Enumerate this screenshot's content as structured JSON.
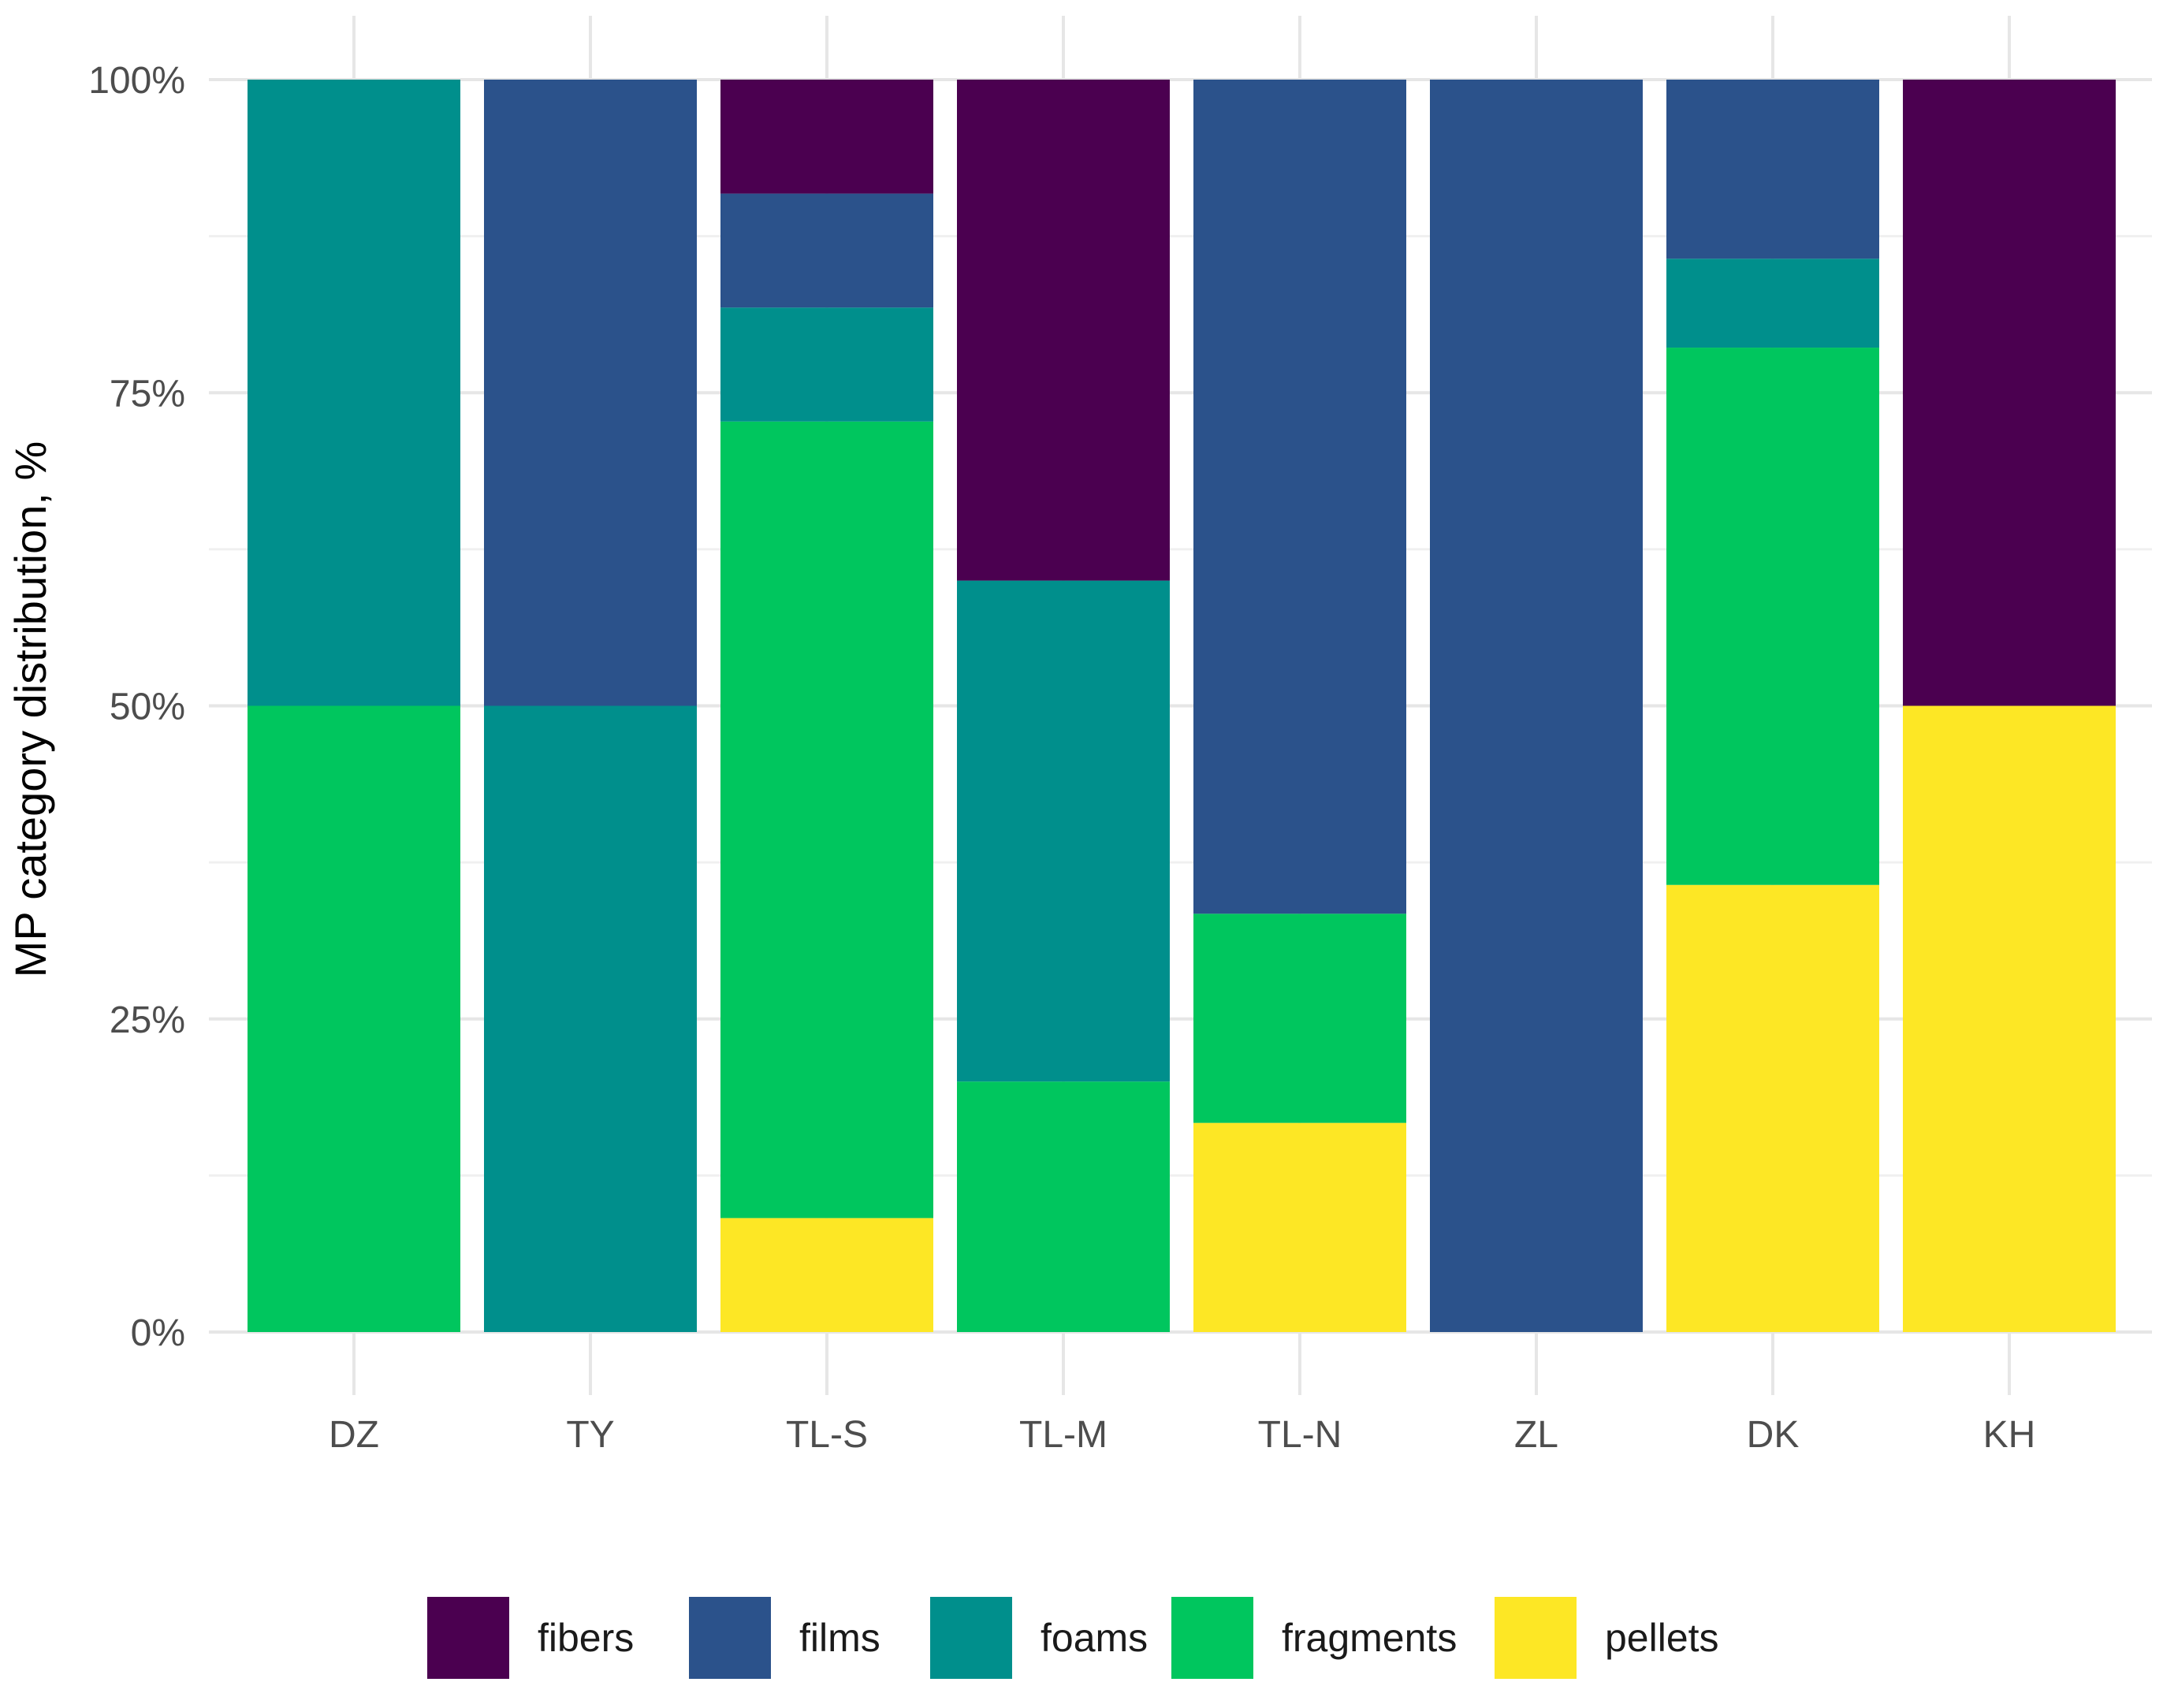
{
  "chart_data": {
    "type": "bar",
    "stacked": true,
    "normalized": true,
    "title": "",
    "xlabel": "",
    "ylabel": "MP category distribution, %",
    "ylim": [
      0,
      100
    ],
    "yticks": [
      "0%",
      "25%",
      "50%",
      "75%",
      "100%"
    ],
    "ytick_values": [
      0,
      25,
      50,
      75,
      100
    ],
    "categories": [
      "DZ",
      "TY",
      "TL-S",
      "TL-M",
      "TL-N",
      "ZL",
      "DK",
      "KH"
    ],
    "series": [
      {
        "name": "pellets",
        "color": "#FDE725",
        "values": [
          0,
          0,
          9.1,
          0,
          16.7,
          0,
          35.7,
          50
        ]
      },
      {
        "name": "fragments",
        "color": "#00C65E",
        "values": [
          50,
          0,
          63.6,
          20,
          16.7,
          0,
          42.9,
          0
        ]
      },
      {
        "name": "foams",
        "color": "#008F8C",
        "values": [
          50,
          50,
          9.1,
          40,
          0,
          0,
          7.1,
          0
        ]
      },
      {
        "name": "films",
        "color": "#2B528B",
        "values": [
          0,
          50,
          9.1,
          0,
          66.6,
          100,
          14.3,
          0
        ]
      },
      {
        "name": "fibers",
        "color": "#4B0050",
        "values": [
          0,
          0,
          9.1,
          40,
          0,
          0,
          0,
          50
        ]
      }
    ],
    "legend": {
      "position": "bottom",
      "order": [
        "fibers",
        "films",
        "foams",
        "fragments",
        "pellets"
      ]
    },
    "grid": true
  }
}
